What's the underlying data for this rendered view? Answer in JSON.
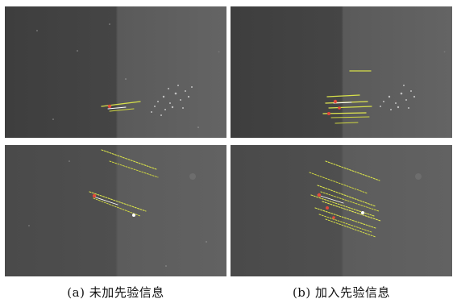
{
  "figure": {
    "captions": [
      {
        "id": "a",
        "text": "(a) 未加先验信息"
      },
      {
        "id": "b",
        "text": "(b) 加入先验信息"
      }
    ]
  }
}
